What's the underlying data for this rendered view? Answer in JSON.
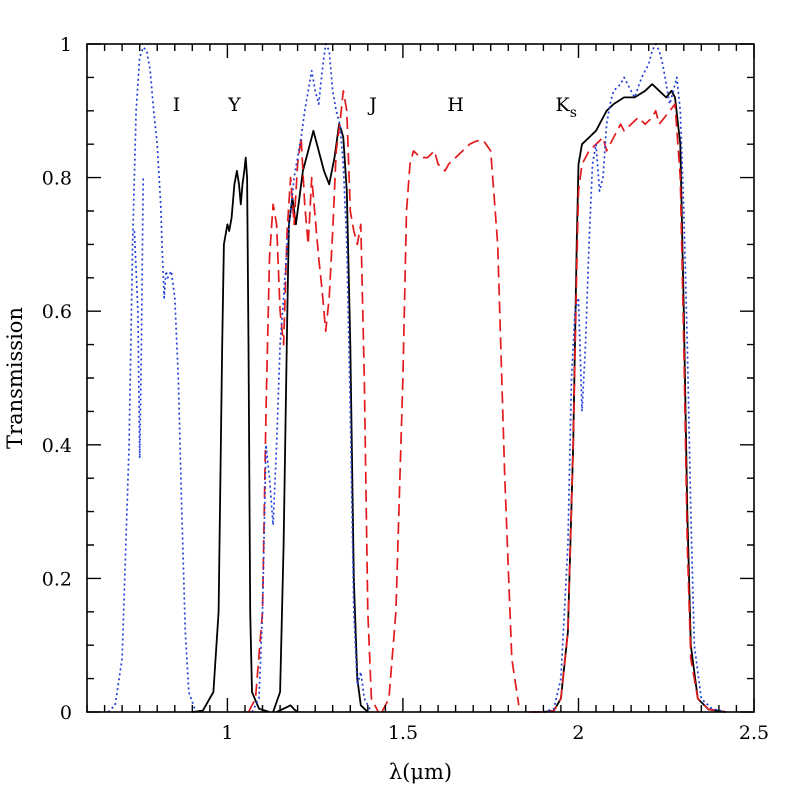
{
  "chart_data": {
    "type": "line",
    "xlabel": "λ(μm)",
    "ylabel": "Transmission",
    "xlim": [
      0.6,
      2.5
    ],
    "ylim": [
      0,
      1
    ],
    "x_ticks": [
      {
        "value": 1.0,
        "label": "1"
      },
      {
        "value": 1.5,
        "label": "1.5"
      },
      {
        "value": 2.0,
        "label": "2"
      },
      {
        "value": 2.5,
        "label": "2.5"
      }
    ],
    "y_ticks": [
      {
        "value": 0.0,
        "label": "0"
      },
      {
        "value": 0.2,
        "label": "0.2"
      },
      {
        "value": 0.4,
        "label": "0.4"
      },
      {
        "value": 0.6,
        "label": "0.6"
      },
      {
        "value": 0.8,
        "label": "0.8"
      },
      {
        "value": 1.0,
        "label": "1"
      }
    ],
    "band_labels": [
      {
        "text": "I",
        "x": 0.855,
        "y": 0.91
      },
      {
        "text": "Y",
        "x": 1.02,
        "y": 0.91
      },
      {
        "text": "J",
        "x": 1.415,
        "y": 0.91
      },
      {
        "text": "H",
        "x": 1.65,
        "y": 0.91
      },
      {
        "text": "K",
        "sub": "s",
        "x": 1.965,
        "y": 0.91
      }
    ],
    "series": [
      {
        "color": "#000000",
        "style": "solid",
        "points": [
          [
            0.9,
            0.0
          ],
          [
            0.93,
            0.002
          ],
          [
            0.96,
            0.03
          ],
          [
            0.975,
            0.15
          ],
          [
            0.985,
            0.55
          ],
          [
            0.99,
            0.7
          ],
          [
            1.0,
            0.73
          ],
          [
            1.005,
            0.72
          ],
          [
            1.012,
            0.74
          ],
          [
            1.02,
            0.79
          ],
          [
            1.027,
            0.81
          ],
          [
            1.033,
            0.79
          ],
          [
            1.038,
            0.76
          ],
          [
            1.043,
            0.79
          ],
          [
            1.048,
            0.81
          ],
          [
            1.052,
            0.83
          ],
          [
            1.056,
            0.8
          ],
          [
            1.06,
            0.55
          ],
          [
            1.065,
            0.15
          ],
          [
            1.07,
            0.03
          ],
          [
            1.09,
            0.005
          ],
          [
            1.12,
            0.0
          ],
          [
            1.14,
            0.0
          ],
          [
            1.16,
            0.005
          ],
          [
            1.18,
            0.01
          ],
          [
            1.19,
            0.004
          ],
          [
            1.2,
            0.0
          ],
          [
            1.13,
            0.0
          ],
          [
            1.15,
            0.03
          ],
          [
            1.16,
            0.25
          ],
          [
            1.17,
            0.58
          ],
          [
            1.175,
            0.73
          ],
          [
            1.185,
            0.77
          ],
          [
            1.195,
            0.73
          ],
          [
            1.205,
            0.77
          ],
          [
            1.215,
            0.81
          ],
          [
            1.23,
            0.84
          ],
          [
            1.245,
            0.87
          ],
          [
            1.26,
            0.84
          ],
          [
            1.275,
            0.81
          ],
          [
            1.29,
            0.79
          ],
          [
            1.305,
            0.83
          ],
          [
            1.318,
            0.88
          ],
          [
            1.325,
            0.87
          ],
          [
            1.33,
            0.86
          ],
          [
            1.34,
            0.78
          ],
          [
            1.35,
            0.55
          ],
          [
            1.36,
            0.2
          ],
          [
            1.37,
            0.05
          ],
          [
            1.38,
            0.01
          ],
          [
            1.4,
            0.0
          ],
          [
            1.9,
            0.0
          ],
          [
            1.93,
            0.002
          ],
          [
            1.95,
            0.02
          ],
          [
            1.97,
            0.12
          ],
          [
            1.985,
            0.4
          ],
          [
            1.995,
            0.7
          ],
          [
            2.0,
            0.82
          ],
          [
            2.01,
            0.85
          ],
          [
            2.03,
            0.86
          ],
          [
            2.05,
            0.87
          ],
          [
            2.08,
            0.9
          ],
          [
            2.1,
            0.91
          ],
          [
            2.13,
            0.92
          ],
          [
            2.16,
            0.92
          ],
          [
            2.19,
            0.93
          ],
          [
            2.21,
            0.94
          ],
          [
            2.23,
            0.93
          ],
          [
            2.25,
            0.92
          ],
          [
            2.265,
            0.93
          ],
          [
            2.275,
            0.92
          ],
          [
            2.29,
            0.85
          ],
          [
            2.3,
            0.6
          ],
          [
            2.31,
            0.3
          ],
          [
            2.32,
            0.1
          ],
          [
            2.34,
            0.02
          ],
          [
            2.37,
            0.004
          ],
          [
            2.42,
            0.0
          ]
        ],
        "breaks_after": [
          21,
          26,
          50
        ]
      },
      {
        "color": "#e31a1c",
        "style": "dashed",
        "points": [
          [
            1.06,
            0.0
          ],
          [
            1.08,
            0.02
          ],
          [
            1.1,
            0.15
          ],
          [
            1.11,
            0.45
          ],
          [
            1.12,
            0.68
          ],
          [
            1.13,
            0.76
          ],
          [
            1.14,
            0.73
          ],
          [
            1.15,
            0.6
          ],
          [
            1.16,
            0.55
          ],
          [
            1.17,
            0.72
          ],
          [
            1.18,
            0.8
          ],
          [
            1.19,
            0.73
          ],
          [
            1.2,
            0.82
          ],
          [
            1.21,
            0.86
          ],
          [
            1.22,
            0.76
          ],
          [
            1.23,
            0.7
          ],
          [
            1.24,
            0.8
          ],
          [
            1.25,
            0.74
          ],
          [
            1.26,
            0.68
          ],
          [
            1.27,
            0.63
          ],
          [
            1.28,
            0.57
          ],
          [
            1.29,
            0.62
          ],
          [
            1.3,
            0.72
          ],
          [
            1.31,
            0.84
          ],
          [
            1.32,
            0.88
          ],
          [
            1.33,
            0.93
          ],
          [
            1.34,
            0.9
          ],
          [
            1.35,
            0.75
          ],
          [
            1.36,
            0.72
          ],
          [
            1.37,
            0.7
          ],
          [
            1.38,
            0.73
          ],
          [
            1.39,
            0.5
          ],
          [
            1.4,
            0.15
          ],
          [
            1.41,
            0.02
          ],
          [
            1.43,
            0.0
          ],
          [
            1.44,
            0.0
          ],
          [
            1.46,
            0.02
          ],
          [
            1.48,
            0.15
          ],
          [
            1.5,
            0.5
          ],
          [
            1.51,
            0.75
          ],
          [
            1.52,
            0.82
          ],
          [
            1.53,
            0.84
          ],
          [
            1.55,
            0.83
          ],
          [
            1.57,
            0.83
          ],
          [
            1.59,
            0.84
          ],
          [
            1.6,
            0.82
          ],
          [
            1.62,
            0.81
          ],
          [
            1.63,
            0.82
          ],
          [
            1.65,
            0.83
          ],
          [
            1.67,
            0.84
          ],
          [
            1.69,
            0.85
          ],
          [
            1.71,
            0.855
          ],
          [
            1.73,
            0.855
          ],
          [
            1.75,
            0.84
          ],
          [
            1.77,
            0.7
          ],
          [
            1.79,
            0.35
          ],
          [
            1.81,
            0.08
          ],
          [
            1.83,
            0.01
          ],
          [
            1.86,
            0.0
          ],
          [
            1.9,
            0.0
          ],
          [
            1.93,
            0.002
          ],
          [
            1.95,
            0.02
          ],
          [
            1.97,
            0.12
          ],
          [
            1.985,
            0.4
          ],
          [
            1.995,
            0.66
          ],
          [
            2.0,
            0.78
          ],
          [
            2.01,
            0.82
          ],
          [
            2.03,
            0.84
          ],
          [
            2.05,
            0.85
          ],
          [
            2.07,
            0.86
          ],
          [
            2.08,
            0.84
          ],
          [
            2.1,
            0.86
          ],
          [
            2.12,
            0.88
          ],
          [
            2.13,
            0.87
          ],
          [
            2.15,
            0.88
          ],
          [
            2.17,
            0.89
          ],
          [
            2.19,
            0.88
          ],
          [
            2.21,
            0.89
          ],
          [
            2.22,
            0.9
          ],
          [
            2.23,
            0.88
          ],
          [
            2.245,
            0.89
          ],
          [
            2.26,
            0.9
          ],
          [
            2.275,
            0.91
          ],
          [
            2.29,
            0.8
          ],
          [
            2.3,
            0.55
          ],
          [
            2.31,
            0.25
          ],
          [
            2.32,
            0.08
          ],
          [
            2.34,
            0.02
          ],
          [
            2.37,
            0.004
          ],
          [
            2.42,
            0.0
          ]
        ],
        "breaks_after": [
          34,
          57
        ]
      },
      {
        "color": "#1f3fd9",
        "style": "dotted",
        "points": [
          [
            0.66,
            0.0
          ],
          [
            0.68,
            0.01
          ],
          [
            0.7,
            0.08
          ],
          [
            0.72,
            0.4
          ],
          [
            0.73,
            0.7
          ],
          [
            0.74,
            0.9
          ],
          [
            0.75,
            0.98
          ],
          [
            0.76,
            0.995
          ],
          [
            0.77,
            0.99
          ],
          [
            0.78,
            0.96
          ],
          [
            0.79,
            0.9
          ],
          [
            0.8,
            0.85
          ],
          [
            0.81,
            0.76
          ],
          [
            0.815,
            0.68
          ],
          [
            0.82,
            0.62
          ],
          [
            0.825,
            0.66
          ],
          [
            0.83,
            0.65
          ],
          [
            0.84,
            0.66
          ],
          [
            0.85,
            0.62
          ],
          [
            0.86,
            0.5
          ],
          [
            0.87,
            0.3
          ],
          [
            0.88,
            0.12
          ],
          [
            0.89,
            0.03
          ],
          [
            0.91,
            0.0
          ],
          [
            0.735,
            0.72
          ],
          [
            0.745,
            0.6
          ],
          [
            0.75,
            0.38
          ],
          [
            0.755,
            0.55
          ],
          [
            0.76,
            0.8
          ],
          [
            1.07,
            0.0
          ],
          [
            1.09,
            0.02
          ],
          [
            1.1,
            0.15
          ],
          [
            1.11,
            0.4
          ],
          [
            1.12,
            0.35
          ],
          [
            1.13,
            0.28
          ],
          [
            1.14,
            0.4
          ],
          [
            1.15,
            0.55
          ],
          [
            1.16,
            0.62
          ],
          [
            1.17,
            0.7
          ],
          [
            1.18,
            0.75
          ],
          [
            1.19,
            0.8
          ],
          [
            1.2,
            0.83
          ],
          [
            1.21,
            0.86
          ],
          [
            1.22,
            0.9
          ],
          [
            1.23,
            0.93
          ],
          [
            1.24,
            0.96
          ],
          [
            1.25,
            0.93
          ],
          [
            1.26,
            0.91
          ],
          [
            1.27,
            0.96
          ],
          [
            1.28,
            1.0
          ],
          [
            1.29,
            0.99
          ],
          [
            1.3,
            0.93
          ],
          [
            1.31,
            0.9
          ],
          [
            1.32,
            0.88
          ],
          [
            1.33,
            0.82
          ],
          [
            1.34,
            0.7
          ],
          [
            1.35,
            0.45
          ],
          [
            1.36,
            0.15
          ],
          [
            1.37,
            0.04
          ],
          [
            1.38,
            0.06
          ],
          [
            1.39,
            0.02
          ],
          [
            1.41,
            0.0
          ],
          [
            1.9,
            0.0
          ],
          [
            1.93,
            0.005
          ],
          [
            1.95,
            0.05
          ],
          [
            1.97,
            0.25
          ],
          [
            1.98,
            0.5
          ],
          [
            1.99,
            0.6
          ],
          [
            2.0,
            0.62
          ],
          [
            2.01,
            0.45
          ],
          [
            2.02,
            0.55
          ],
          [
            2.03,
            0.7
          ],
          [
            2.04,
            0.82
          ],
          [
            2.05,
            0.85
          ],
          [
            2.06,
            0.78
          ],
          [
            2.07,
            0.8
          ],
          [
            2.08,
            0.88
          ],
          [
            2.09,
            0.91
          ],
          [
            2.1,
            0.93
          ],
          [
            2.12,
            0.94
          ],
          [
            2.13,
            0.95
          ],
          [
            2.15,
            0.93
          ],
          [
            2.16,
            0.92
          ],
          [
            2.18,
            0.95
          ],
          [
            2.2,
            0.97
          ],
          [
            2.21,
            0.99
          ],
          [
            2.22,
            1.0
          ],
          [
            2.23,
            0.99
          ],
          [
            2.24,
            0.97
          ],
          [
            2.25,
            0.94
          ],
          [
            2.26,
            0.91
          ],
          [
            2.27,
            0.93
          ],
          [
            2.28,
            0.95
          ],
          [
            2.29,
            0.9
          ],
          [
            2.3,
            0.75
          ],
          [
            2.31,
            0.55
          ],
          [
            2.32,
            0.3
          ],
          [
            2.33,
            0.1
          ],
          [
            2.35,
            0.02
          ],
          [
            2.38,
            0.005
          ],
          [
            2.42,
            0.0
          ]
        ],
        "breaks_after": [
          23,
          28,
          61
        ]
      }
    ]
  }
}
